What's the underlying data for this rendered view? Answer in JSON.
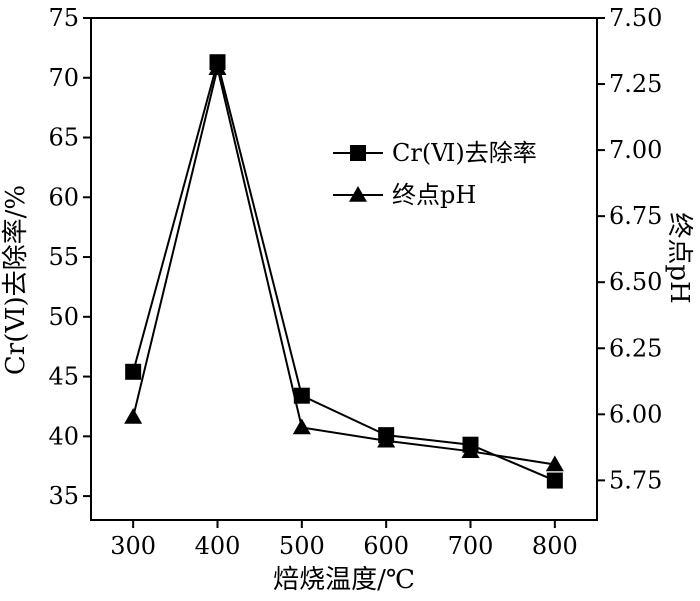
{
  "chart_data": {
    "type": "line",
    "x": [
      300,
      400,
      500,
      600,
      700,
      800
    ],
    "xlabel": "焙烧温度/℃",
    "ylabel": "Cr(Ⅵ)去除率/%",
    "y2label": "终点pH",
    "xlim": [
      250,
      850
    ],
    "ylim": [
      33,
      75
    ],
    "y2lim": [
      5.6,
      7.5
    ],
    "xticks": [
      "300",
      "400",
      "500",
      "600",
      "700",
      "800"
    ],
    "yticks": [
      "35",
      "40",
      "45",
      "50",
      "55",
      "60",
      "65",
      "70",
      "75"
    ],
    "y2ticks": [
      "5.75",
      "6.00",
      "6.25",
      "6.50",
      "6.75",
      "7.00",
      "7.25",
      "7.50"
    ],
    "grid": false,
    "legend_position": "upper-right",
    "series": [
      {
        "name": "Cr(Ⅵ)去除率",
        "axis": "left",
        "marker": "square",
        "values": [
          45.4,
          71.3,
          43.4,
          40.1,
          39.3,
          36.3
        ]
      },
      {
        "name": "终点pH",
        "axis": "right",
        "marker": "triangle",
        "values": [
          5.99,
          7.31,
          5.95,
          5.9,
          5.86,
          5.81
        ]
      }
    ]
  }
}
